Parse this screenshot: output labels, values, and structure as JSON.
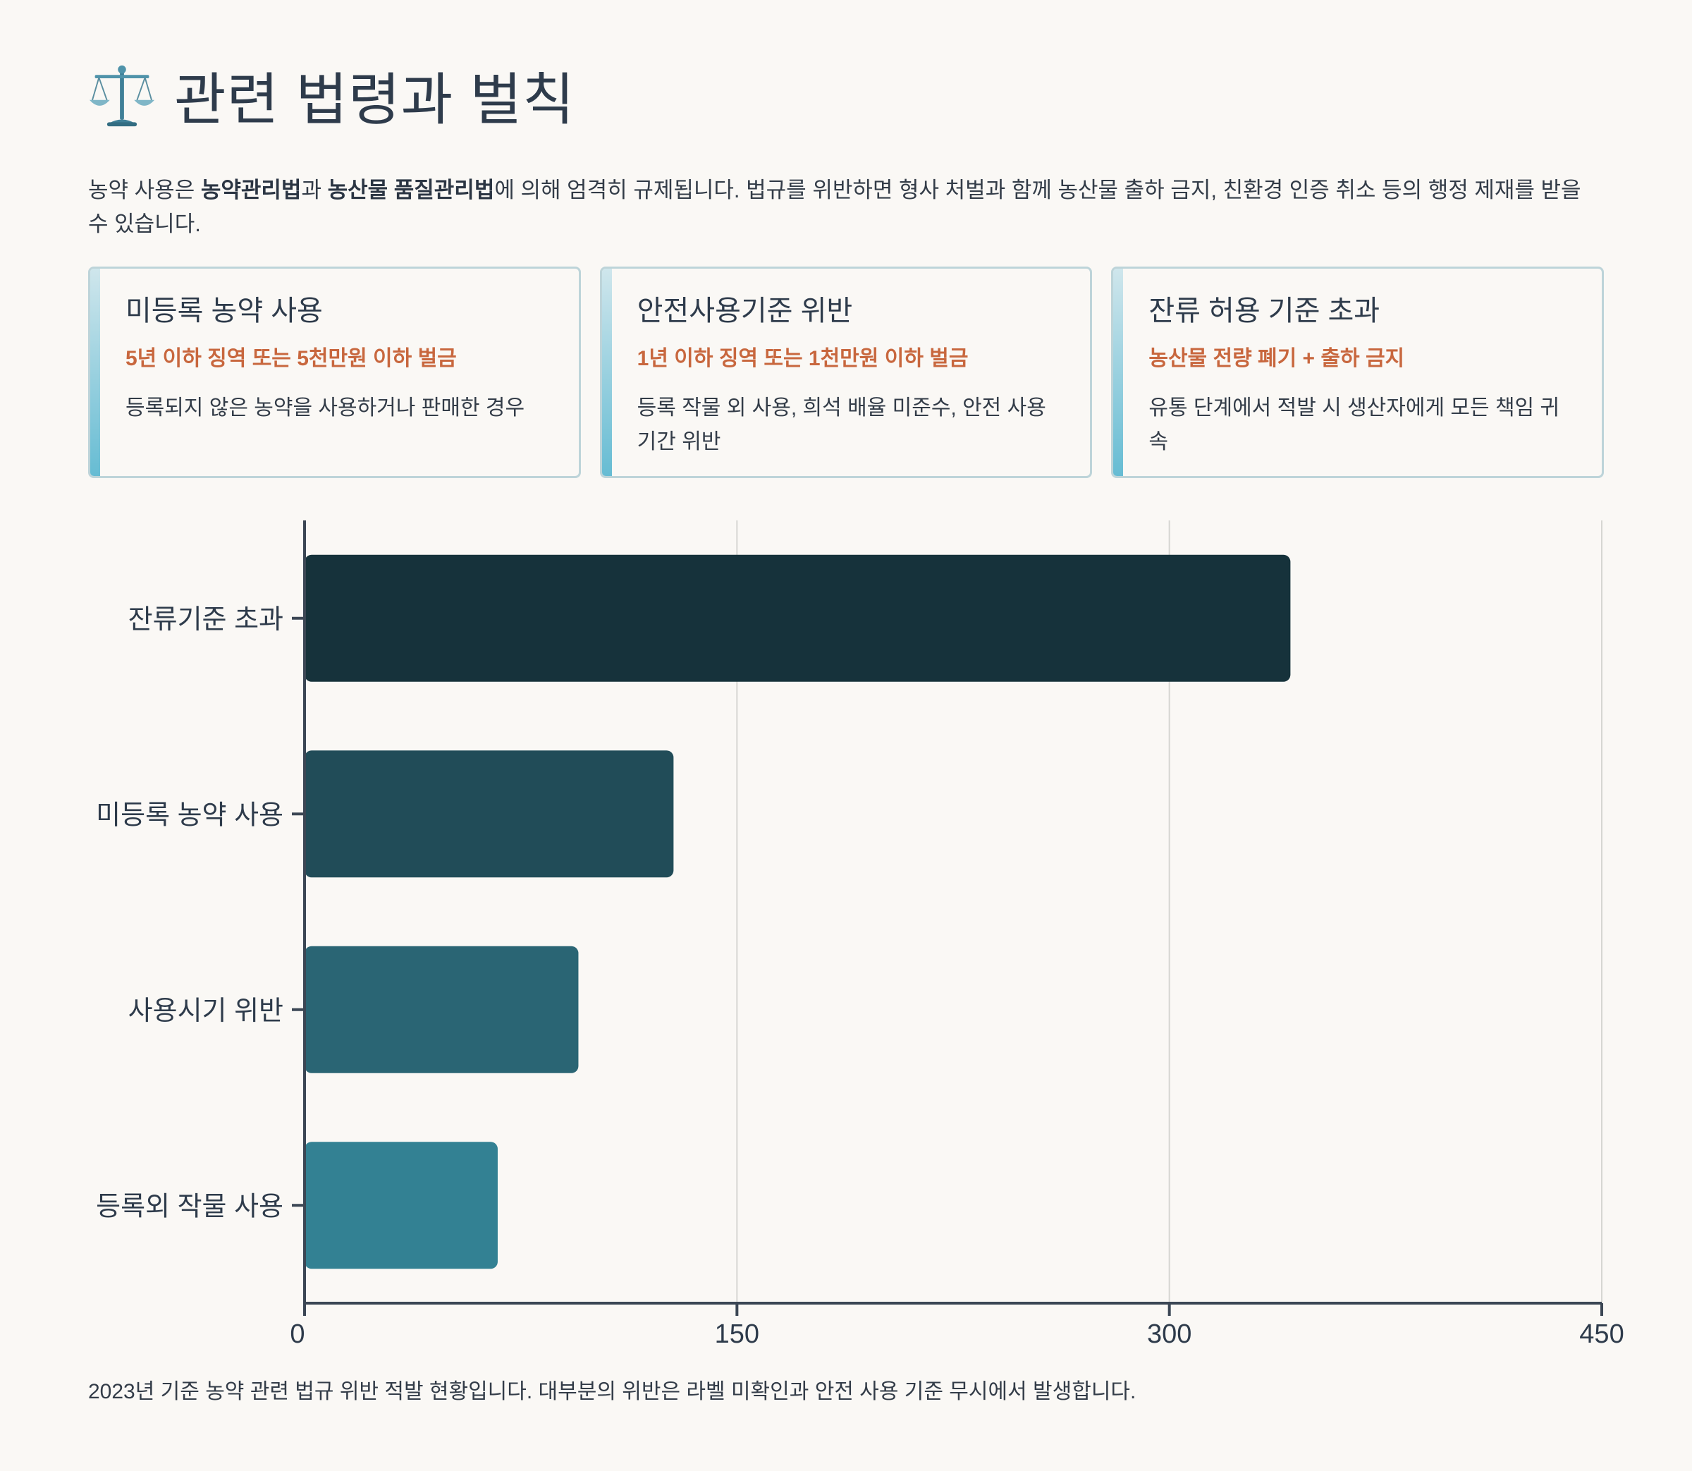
{
  "header": {
    "title": "관련 법령과 벌칙",
    "icon": "balance-scale-icon"
  },
  "intro": {
    "part1": "농약 사용은 ",
    "law1": "농약관리법",
    "part2": "과 ",
    "law2": "농산물 품질관리법",
    "part3": "에 의해 엄격히 규제됩니다. 법규를 위반하면 형사 처벌과 함께 농산물 출하 금지, 친환경 인증 취소 등의 행정 제재를 받을 수 있습니다."
  },
  "cards": [
    {
      "title": "미등록 농약 사용",
      "penalty": "5년 이하 징역 또는 5천만원 이하 벌금",
      "desc": "등록되지 않은 농약을 사용하거나 판매한 경우"
    },
    {
      "title": "안전사용기준 위반",
      "penalty": "1년 이하 징역 또는 1천만원 이하 벌금",
      "desc": "등록 작물 외 사용, 희석 배율 미준수, 안전 사용 기간 위반"
    },
    {
      "title": "잔류 허용 기준 초과",
      "penalty": "농산물 전량 폐기 + 출하 금지",
      "desc": "유통 단계에서 적발 시 생산자에게 모든 책임 귀속"
    }
  ],
  "chart_data": {
    "type": "bar",
    "orientation": "horizontal",
    "categories": [
      "잔류기준 초과",
      "미등록 농약 사용",
      "사용시기 위반",
      "등록외 작물 사용"
    ],
    "values": [
      342,
      128,
      95,
      67
    ],
    "colors": [
      "#16323b",
      "#214c58",
      "#2a6574",
      "#338193"
    ],
    "xlim": [
      0,
      450
    ],
    "xticks": [
      "0",
      "150",
      "300",
      "450"
    ],
    "grid": "vertical",
    "xlabel": "",
    "ylabel": ""
  },
  "caption": "2023년 기준 농약 관련 법규 위반 적발 현황입니다. 대부분의 위반은 라벨 미확인과 안전 사용 기준 무시에서 발생합니다.",
  "colors": {
    "background": "#faf8f5",
    "accent": "#c8673e",
    "card_border": "#bdd4d9"
  }
}
